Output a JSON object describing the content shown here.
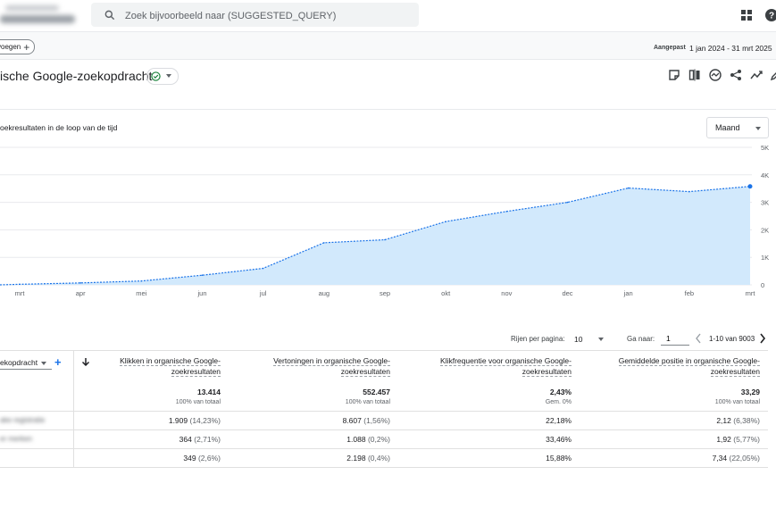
{
  "header": {
    "blurred_title": "Klikken op Google",
    "search_placeholder": "Zoek bijvoorbeeld naar (SUGGESTED_QUERY)",
    "icons": [
      "search-icon",
      "apps-grid-icon",
      "help-icon"
    ]
  },
  "filterbar": {
    "add_label": "voegen",
    "date_label": "Aangepast",
    "date_range": "1 jan 2024 - 31 mrt 2025"
  },
  "title": {
    "text": "ische Google-zoekopdracht",
    "status_color": "#188038",
    "toolbar_icons": [
      "note-icon",
      "compare-icon",
      "insights-icon",
      "share-icon",
      "trend-icon",
      "edit-icon"
    ]
  },
  "chart": {
    "title": "oekresultaten in de loop van de tijd",
    "period": "Maand",
    "accent": "#1a73e8",
    "fill": "#d2e9fc"
  },
  "chart_data": {
    "type": "area",
    "title": "oekresultaten in de loop van de tijd",
    "x": [
      "mrt",
      "apr",
      "mei",
      "jun",
      "jul",
      "aug",
      "sep",
      "okt",
      "nov",
      "dec",
      "jan",
      "feb",
      "mrt"
    ],
    "y_ticks": [
      "0",
      "1K",
      "2K",
      "3K",
      "4K",
      "5K"
    ],
    "ylim": [
      0,
      5000
    ],
    "series": [
      {
        "values": [
          20,
          70,
          140,
          350,
          600,
          1530,
          1640,
          2300,
          2670,
          3000,
          3520,
          3390,
          3580
        ]
      }
    ],
    "grid": true
  },
  "pagination": {
    "rows_label": "Rijen per pagina:",
    "rows_value": "10",
    "goto_label": "Ga naar:",
    "goto_value": "1",
    "range": "1-10 van 9003"
  },
  "table": {
    "dimension": "ekopdracht",
    "columns": [
      {
        "l1": "Klikken in organische Google-",
        "l2": "zoekresultaten",
        "total": "13.414",
        "sub": "100% van totaal"
      },
      {
        "l1": "Vertoningen in organische Google-",
        "l2": "zoekresultaten",
        "total": "552.457",
        "sub": "100% van totaal"
      },
      {
        "l1": "Klikfrequentie voor organische Google-",
        "l2": "zoekresultaten",
        "total": "2,43%",
        "sub": "Gem. 0%"
      },
      {
        "l1": "Gemiddelde positie in organische Google-",
        "l2": "zoekresultaten",
        "total": "33,29",
        "sub": "100% van totaal"
      }
    ],
    "rows": [
      {
        "name": "ake registratie",
        "c1": "1.909",
        "c1p": "(14,23%)",
        "c2": "8.607",
        "c2p": "(1,56%)",
        "c3": "22,18%",
        "c4": "2,12",
        "c4p": "(6,38%)"
      },
      {
        "name": "er merken",
        "c1": "364",
        "c1p": "(2,71%)",
        "c2": "1.088",
        "c2p": "(0,2%)",
        "c3": "33,46%",
        "c4": "1,92",
        "c4p": "(5,77%)"
      },
      {
        "name": "",
        "c1": "349",
        "c1p": "(2,6%)",
        "c2": "2.198",
        "c2p": "(0,4%)",
        "c3": "15,88%",
        "c4": "7,34",
        "c4p": "(22,05%)"
      }
    ]
  }
}
